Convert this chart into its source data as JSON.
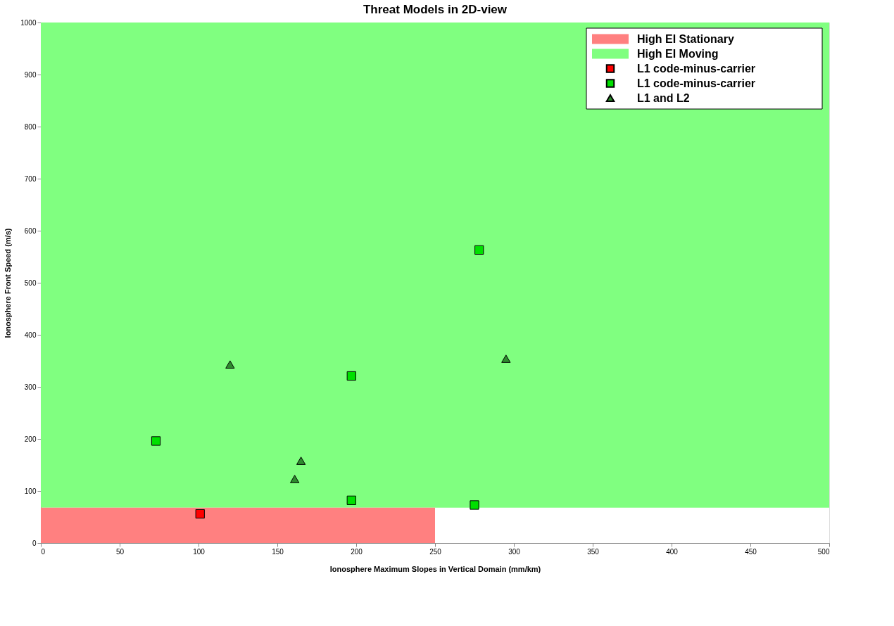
{
  "chart_data": {
    "type": "scatter",
    "title": "Threat Models in 2D-view",
    "xlabel": "Ionosphere Maximum Slopes in Vertical Domain (mm/km)",
    "ylabel": "Ionosphere Front Speed (m/s)",
    "xlim": [
      0,
      500
    ],
    "xticks": [
      0,
      50,
      100,
      150,
      200,
      250,
      300,
      350,
      400,
      450,
      500
    ],
    "ylim": [
      0,
      1000
    ],
    "yticks": [
      0,
      100,
      200,
      300,
      400,
      500,
      600,
      700,
      800,
      900,
      1000
    ],
    "legend": "top right",
    "series": [
      {
        "name": "High EI Stationary",
        "type": "area",
        "color": "#ff8080",
        "x": [
          0,
          250
        ],
        "values": [
          68,
          68
        ]
      },
      {
        "name": "L1 code-minus-carrier",
        "marker": "square",
        "color": "#ff0000",
        "x": [
          101
        ],
        "values": [
          56
        ]
      },
      {
        "name": "L1 code-minus-carrier",
        "marker": "square",
        "color": "#00e000",
        "x": [
          73,
          197,
          197,
          278,
          275
        ],
        "values": [
          196,
          321,
          82,
          563,
          73
        ]
      },
      {
        "name": "L1 and L2",
        "marker": "triangle",
        "color": "#2e8b2e",
        "x": [
          120,
          165,
          161,
          295
        ],
        "values": [
          343,
          158,
          123,
          354
        ]
      }
    ],
    "bands": [
      {
        "axis": "y",
        "from": 68,
        "to": 1000,
        "label": "High EI Moving",
        "color": "#80ff80"
      }
    ]
  }
}
